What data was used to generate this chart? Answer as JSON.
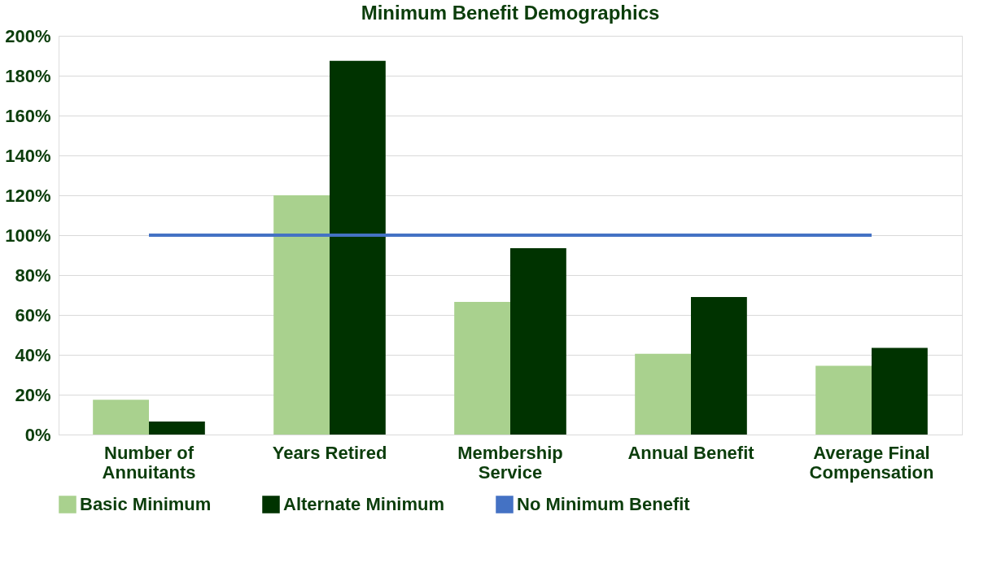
{
  "chart_data": {
    "type": "bar",
    "title": "Minimum Benefit Demographics",
    "categories": [
      "Number of Annuitants",
      "Years Retired",
      "Membership Service",
      "Annual Benefit",
      "Average Final Compensation"
    ],
    "series": [
      {
        "name": "Basic Minimum",
        "color": "#a9d18e",
        "values": [
          17.5,
          120,
          66.5,
          40.5,
          34.5
        ]
      },
      {
        "name": "Alternate Minimum",
        "color": "#003300",
        "values": [
          6.5,
          187.5,
          93.5,
          69,
          43.5
        ]
      },
      {
        "name": "No Minimum Benefit",
        "type": "line",
        "color": "#4472c4",
        "values": [
          100,
          100,
          100,
          100,
          100
        ]
      }
    ],
    "ylim": [
      0,
      200
    ],
    "yticks": [
      {
        "value": 0,
        "label": "0%"
      },
      {
        "value": 20,
        "label": "20%"
      },
      {
        "value": 40,
        "label": "40%"
      },
      {
        "value": 60,
        "label": "60%"
      },
      {
        "value": 80,
        "label": "80%"
      },
      {
        "value": 100,
        "label": "100%"
      },
      {
        "value": 120,
        "label": "120%"
      },
      {
        "value": 140,
        "label": "140%"
      },
      {
        "value": 160,
        "label": "160%"
      },
      {
        "value": 180,
        "label": "180%"
      },
      {
        "value": 200,
        "label": "200%"
      }
    ],
    "grid": "y",
    "legend": "bottom"
  }
}
